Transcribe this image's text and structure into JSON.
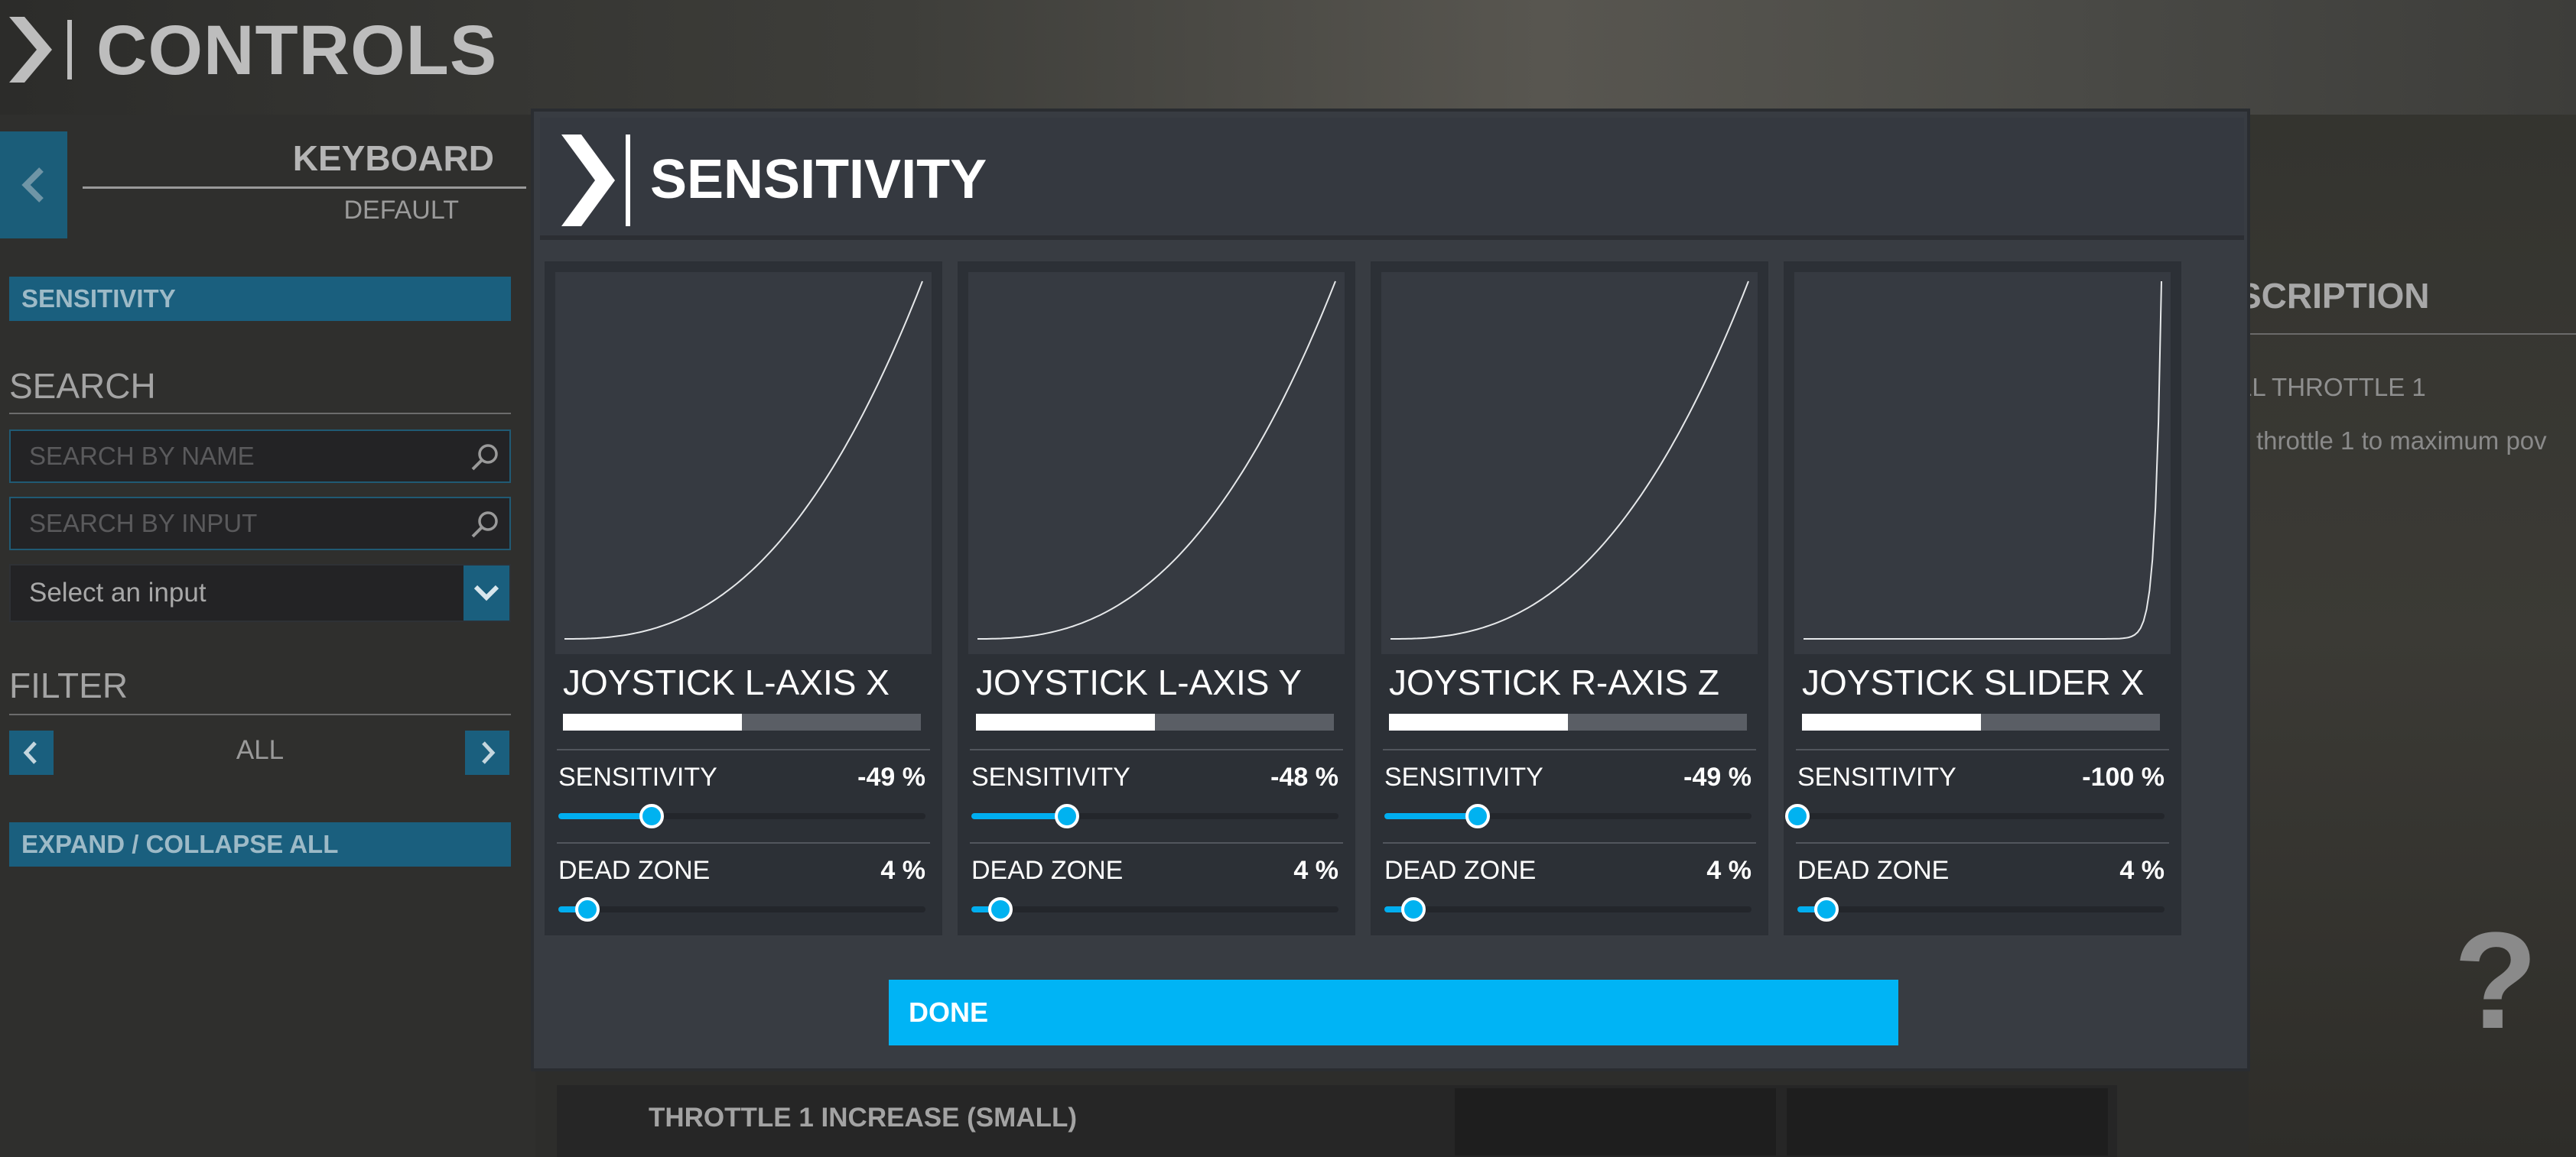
{
  "header": {
    "title": "CONTROLS"
  },
  "left_panel": {
    "device_name": "KEYBOARD",
    "profile_name": "DEFAULT",
    "sensitivity_button": "SENSITIVITY",
    "search_title": "SEARCH",
    "search_by_name_placeholder": "SEARCH BY NAME",
    "search_by_input_placeholder": "SEARCH BY INPUT",
    "select_input_value": "Select an input",
    "filter_title": "FILTER",
    "filter_value": "ALL",
    "expand_button": "EXPAND / COLLAPSE ALL"
  },
  "description_panel": {
    "title": "SCRIPTION",
    "line1": "LL THROTTLE 1",
    "line2": "throttle 1 to maximum pov"
  },
  "background_row": {
    "label": "THROTTLE 1 INCREASE (SMALL)"
  },
  "modal": {
    "title": "SENSITIVITY",
    "sensitivity_label": "SENSITIVITY",
    "deadzone_label": "DEAD ZONE",
    "done_label": "DONE",
    "axes": [
      {
        "name": "JOYSTICK L-AXIS X",
        "range_fill": 0.5,
        "sensitivity": -49,
        "sensitivity_text": "-49 %",
        "deadzone": 4,
        "deadzone_text": "4 %"
      },
      {
        "name": "JOYSTICK L-AXIS Y",
        "range_fill": 0.5,
        "sensitivity": -48,
        "sensitivity_text": "-48 %",
        "deadzone": 4,
        "deadzone_text": "4 %"
      },
      {
        "name": "JOYSTICK R-AXIS Z",
        "range_fill": 0.5,
        "sensitivity": -49,
        "sensitivity_text": "-49 %",
        "deadzone": 4,
        "deadzone_text": "4 %"
      },
      {
        "name": "JOYSTICK SLIDER X",
        "range_fill": 0.5,
        "sensitivity": -100,
        "sensitivity_text": "-100 %",
        "deadzone": 4,
        "deadzone_text": "4 %"
      }
    ]
  },
  "colors": {
    "accent": "#00b4f5",
    "accent_dark": "#1a5f7e",
    "modal_bg": "#383c42",
    "card_bg": "#2c3036"
  },
  "icons": [
    "chevron-logo-icon",
    "back-chevron-icon",
    "search-icon",
    "dropdown-chevron-icon",
    "prev-chevron-icon",
    "next-chevron-icon",
    "help-icon"
  ]
}
